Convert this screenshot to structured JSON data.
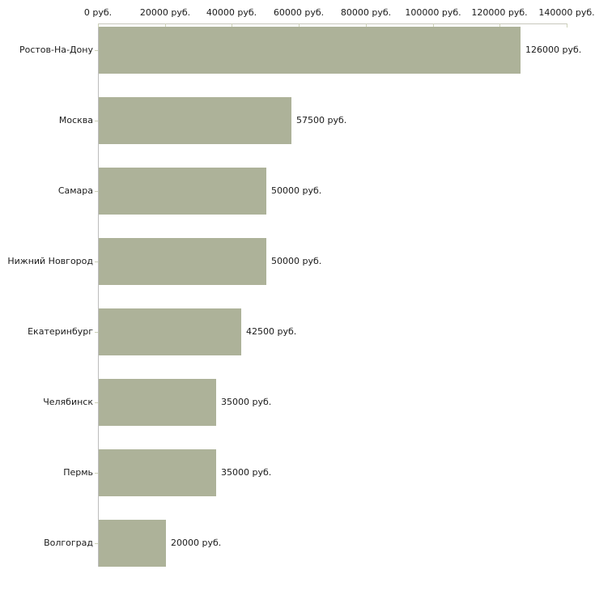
{
  "chart_data": {
    "type": "bar",
    "orientation": "horizontal",
    "title": "",
    "unit": "руб.",
    "categories": [
      "Ростов-На-Дону",
      "Москва",
      "Самара",
      "Нижний Новгород",
      "Екатеринбург",
      "Челябинск",
      "Пермь",
      "Волгоград"
    ],
    "values": [
      126000,
      57500,
      50000,
      50000,
      42500,
      35000,
      35000,
      20000
    ],
    "value_labels": [
      "126000 руб.",
      "57500 руб.",
      "50000 руб.",
      "50000 руб.",
      "42500 руб.",
      "35000 руб.",
      "35000 руб.",
      "20000 руб."
    ],
    "x_axis": {
      "position": "top",
      "min": 0,
      "max": 140000,
      "tick_values": [
        0,
        20000,
        40000,
        60000,
        80000,
        100000,
        120000,
        140000
      ],
      "tick_labels": [
        "0 руб.",
        "20000 руб.",
        "40000 руб.",
        "60000 руб.",
        "80000 руб.",
        "100000 руб.",
        "120000 руб.",
        "140000 руб."
      ]
    },
    "grid": false,
    "legend": false,
    "colors": {
      "bar": "#adb299",
      "axis_line_top": "#c8c8bd",
      "axis_line_left": "#bdbdbd",
      "tick": "#cdd1b8",
      "text": "#1a1a1a",
      "background": "#ffffff"
    }
  }
}
